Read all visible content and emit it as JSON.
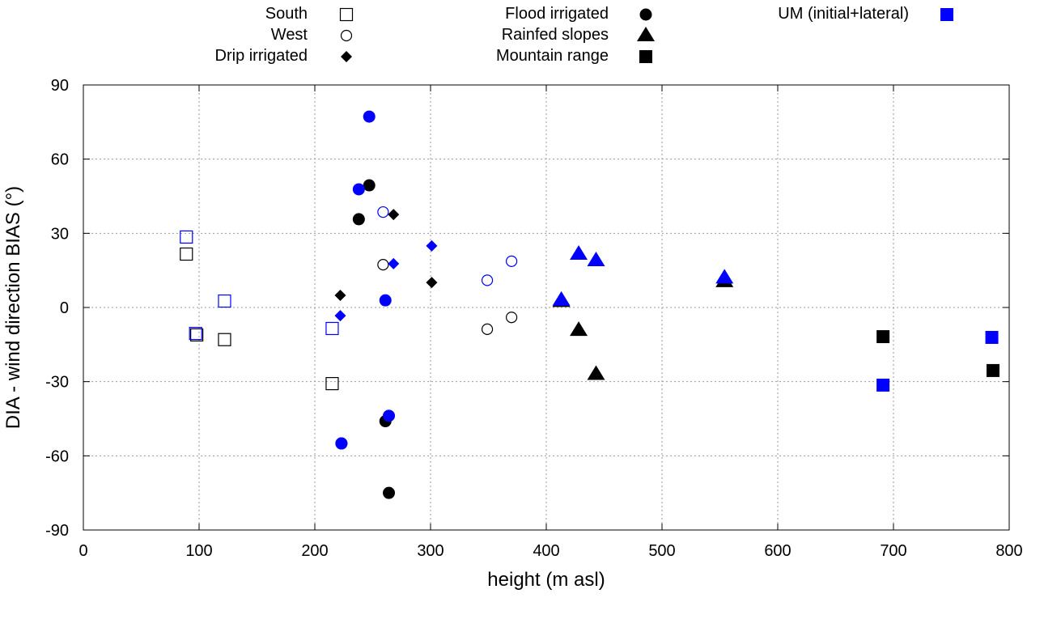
{
  "chart_data": {
    "type": "scatter",
    "xlabel": "height (m asl)",
    "ylabel": "DIA - wind direction BIAS (°)",
    "xlim": [
      0,
      800
    ],
    "ylim": [
      -90,
      90
    ],
    "xticks": [
      0,
      100,
      200,
      300,
      400,
      500,
      600,
      700,
      800
    ],
    "yticks": [
      -90,
      -60,
      -30,
      0,
      30,
      60,
      90
    ],
    "grid": true,
    "colors": {
      "DIA": "#000000",
      "UM": "#0000ff"
    },
    "legend": {
      "placement": "top-outside",
      "entries": [
        {
          "label": "South",
          "marker": "open-square",
          "color": "#000000"
        },
        {
          "label": "West",
          "marker": "open-circle",
          "color": "#000000"
        },
        {
          "label": "Drip irrigated",
          "marker": "diamond",
          "color": "#000000"
        },
        {
          "label": "Flood irrigated",
          "marker": "circle",
          "color": "#000000"
        },
        {
          "label": "Rainfed slopes",
          "marker": "triangle",
          "color": "#000000"
        },
        {
          "label": "Mountain range",
          "marker": "square",
          "color": "#000000"
        },
        {
          "label": "UM (initial+lateral)",
          "marker": "square",
          "color": "#0000ff"
        }
      ]
    },
    "series": [
      {
        "name": "South",
        "marker": "open-square",
        "dia": [
          [
            89,
            21.6
          ],
          [
            98,
            -11.1
          ],
          [
            122,
            -13
          ],
          [
            215,
            -30.8
          ]
        ],
        "um": [
          [
            89,
            28.5
          ],
          [
            97,
            -10.5
          ],
          [
            122,
            2.6
          ],
          [
            215,
            -8.5
          ]
        ]
      },
      {
        "name": "West",
        "marker": "open-circle",
        "dia": [
          [
            259,
            17.3
          ],
          [
            349,
            -8.8
          ],
          [
            370,
            -4
          ]
        ],
        "um": [
          [
            259,
            38.6
          ],
          [
            349,
            11
          ],
          [
            370,
            18.7
          ]
        ]
      },
      {
        "name": "Drip irrigated",
        "marker": "diamond",
        "dia": [
          [
            222,
            4.9
          ],
          [
            268,
            37.6
          ],
          [
            301,
            10.1
          ]
        ],
        "um": [
          [
            222,
            -3.3
          ],
          [
            268,
            17.7
          ],
          [
            301,
            24.9
          ]
        ]
      },
      {
        "name": "Flood irrigated",
        "marker": "circle",
        "dia": [
          [
            247,
            49.4
          ],
          [
            238,
            35.7
          ],
          [
            261,
            -46
          ],
          [
            264,
            -75
          ],
          [
            223,
            -55
          ]
        ],
        "um": [
          [
            247,
            77.2
          ],
          [
            238,
            47.8
          ],
          [
            261,
            2.9
          ],
          [
            264,
            -43.8
          ],
          [
            223,
            -55
          ]
        ]
      },
      {
        "name": "Rainfed slopes",
        "marker": "triangle",
        "dia": [
          [
            428,
            -9.2
          ],
          [
            443,
            -27
          ],
          [
            413,
            2.5
          ],
          [
            554,
            10.5
          ]
        ],
        "um": [
          [
            428,
            21.6
          ],
          [
            443,
            19
          ],
          [
            413,
            3
          ],
          [
            554,
            12
          ]
        ]
      },
      {
        "name": "Mountain range",
        "marker": "square",
        "dia": [
          [
            691,
            -11.8
          ],
          [
            786,
            -25.5
          ]
        ],
        "um": [
          [
            691,
            -31.4
          ],
          [
            785,
            -12.1
          ]
        ]
      }
    ]
  }
}
